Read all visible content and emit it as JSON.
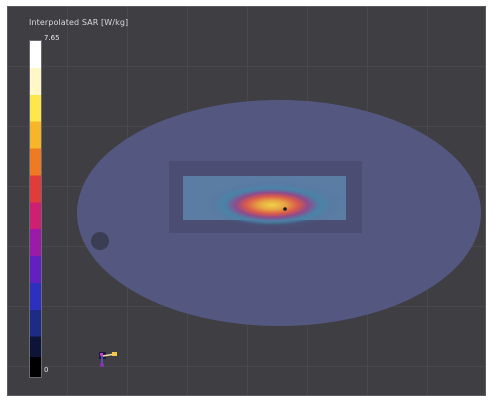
{
  "viewer": {
    "colorbar": {
      "title": "Interpolated SAR [W/kg]",
      "max_label": "7.65",
      "min_label": "0",
      "colors": [
        "#ffffff",
        "#fff8c6",
        "#fde74a",
        "#f7b52a",
        "#ef7a21",
        "#e23b3c",
        "#cf1f72",
        "#9a1ba8",
        "#6320c0",
        "#2d2fbf",
        "#1d2b86",
        "#0e1437",
        "#000000"
      ]
    },
    "scene": {
      "phantom_color": "#54577f",
      "hotspot_colors": [
        "#f5c94a",
        "#e0694a",
        "#8a4f8a",
        "#4a86a8"
      ],
      "axes_glyph_icon": "axes-triad-icon"
    },
    "background_color": "#3e3e43"
  }
}
